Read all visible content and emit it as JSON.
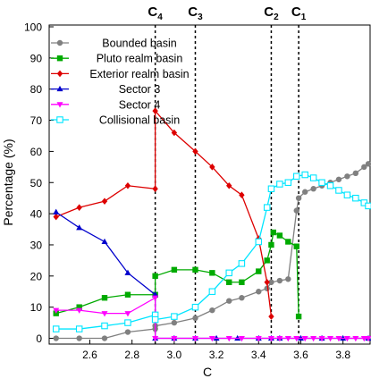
{
  "chart_data": {
    "type": "line",
    "title": "",
    "xlabel": "C",
    "ylabel": "Percentage (%)",
    "xlim": [
      2.42,
      3.92
    ],
    "ylim": [
      -1,
      100
    ],
    "x_ticks": [
      2.6,
      2.8,
      3.0,
      3.2,
      3.4,
      3.6,
      3.8
    ],
    "x_tick_labels": [
      "2.6",
      "2.8",
      "3.0",
      "3.2",
      "3.4",
      "3.6",
      "3.8"
    ],
    "y_ticks": [
      0,
      10,
      20,
      30,
      40,
      50,
      60,
      70,
      80,
      90,
      100
    ],
    "y_tick_labels": [
      "0",
      "10",
      "20",
      "30",
      "40",
      "50",
      "60",
      "70",
      "80",
      "90",
      "100"
    ],
    "grid": false,
    "legend_position": "top-left",
    "vlines": [
      {
        "x": 2.91,
        "label": "C",
        "sub": "4"
      },
      {
        "x": 3.1,
        "label": "C",
        "sub": "3"
      },
      {
        "x": 3.46,
        "label": "C",
        "sub": "2"
      },
      {
        "x": 3.59,
        "label": "C",
        "sub": "1"
      }
    ],
    "series": [
      {
        "name": "Bounded basin",
        "color": "#808080",
        "marker": "circle",
        "x": [
          2.44,
          2.55,
          2.67,
          2.78,
          2.91,
          2.91,
          3.0,
          3.1,
          3.18,
          3.26,
          3.32,
          3.4,
          3.44,
          3.46,
          3.5,
          3.54,
          3.58,
          3.59,
          3.62,
          3.66,
          3.7,
          3.74,
          3.78,
          3.82,
          3.86,
          3.9,
          3.92
        ],
        "y": [
          0,
          0,
          0,
          2,
          3,
          4,
          5,
          6.5,
          9,
          12,
          13,
          15,
          16,
          18,
          18.5,
          19,
          41,
          45,
          47,
          48,
          49,
          50,
          51,
          52,
          53,
          55,
          56
        ]
      },
      {
        "name": "Pluto realm basin",
        "color": "#00aa00",
        "marker": "square",
        "x": [
          2.44,
          2.55,
          2.67,
          2.78,
          2.91,
          2.91,
          3.0,
          3.1,
          3.18,
          3.26,
          3.32,
          3.4,
          3.44,
          3.46,
          3.47,
          3.5,
          3.54,
          3.58,
          3.59
        ],
        "y": [
          8,
          10,
          13,
          14,
          14,
          20,
          22,
          22,
          21,
          18,
          18,
          21.5,
          25,
          30,
          34,
          33,
          31,
          29.5,
          7
        ]
      },
      {
        "name": "Exterior realm basin",
        "color": "#dd0000",
        "marker": "diamond",
        "x": [
          2.44,
          2.55,
          2.67,
          2.78,
          2.91,
          2.91,
          3.0,
          3.1,
          3.18,
          3.26,
          3.32,
          3.4,
          3.44,
          3.46
        ],
        "y": [
          39,
          42,
          44,
          49,
          48,
          73,
          66,
          60,
          55,
          49,
          46,
          32,
          18,
          7
        ]
      },
      {
        "name": "Sector 3",
        "color": "#0000cc",
        "marker": "triangle-up",
        "x": [
          2.44,
          2.55,
          2.67,
          2.78,
          2.91,
          2.91,
          3.0,
          3.1,
          3.2,
          3.3,
          3.4,
          3.46,
          3.5,
          3.6,
          3.7,
          3.8,
          3.92
        ],
        "y": [
          40.5,
          35.5,
          31,
          21,
          14,
          0,
          0,
          0,
          0,
          0,
          0,
          0,
          0,
          0,
          0,
          0,
          0
        ]
      },
      {
        "name": "Sector 4",
        "color": "#ff00ff",
        "marker": "triangle-down",
        "x": [
          2.44,
          2.55,
          2.67,
          2.78,
          2.91,
          2.91,
          3.0,
          3.1,
          3.18,
          3.26,
          3.32,
          3.4,
          3.46,
          3.5,
          3.54,
          3.58,
          3.62,
          3.66,
          3.7,
          3.74,
          3.78,
          3.82,
          3.86,
          3.9,
          3.92
        ],
        "y": [
          9,
          9,
          8,
          8,
          13,
          0,
          0,
          0,
          0,
          0,
          0,
          0,
          0,
          0,
          0,
          0,
          0,
          0,
          0,
          0,
          0,
          0,
          0,
          0,
          0
        ]
      },
      {
        "name": "Collisional basin",
        "color": "#00e5ff",
        "marker": "open-square",
        "x": [
          2.44,
          2.55,
          2.67,
          2.78,
          2.91,
          2.91,
          3.0,
          3.1,
          3.18,
          3.26,
          3.32,
          3.4,
          3.44,
          3.46,
          3.5,
          3.54,
          3.58,
          3.62,
          3.66,
          3.7,
          3.74,
          3.78,
          3.82,
          3.86,
          3.9,
          3.92
        ],
        "y": [
          3,
          3,
          4,
          5,
          7.5,
          6,
          7,
          10,
          15,
          21,
          24,
          31,
          42,
          48,
          49.5,
          50,
          52,
          52.5,
          51.5,
          50,
          49,
          47.5,
          46,
          45,
          43.5,
          42.5
        ]
      }
    ]
  }
}
